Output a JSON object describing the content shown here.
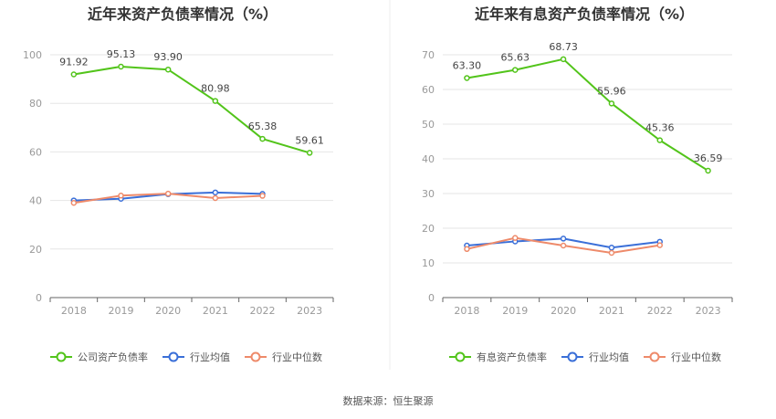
{
  "source": "数据来源：恒生聚源",
  "chart_data": [
    {
      "type": "line",
      "title": "近年来资产负债率情况（%）",
      "categories": [
        "2018",
        "2019",
        "2020",
        "2021",
        "2022",
        "2023"
      ],
      "ylim": [
        0,
        100
      ],
      "yticks": [
        0,
        20,
        40,
        60,
        80,
        100
      ],
      "grid": true,
      "legend_position": "bottom",
      "series": [
        {
          "name": "公司资产负债率",
          "color": "#52c41a",
          "values": [
            91.92,
            95.13,
            93.9,
            80.98,
            65.38,
            59.61
          ],
          "labels": [
            "91.92",
            "95.13",
            "93.90",
            "80.98",
            "65.38",
            "59.61"
          ]
        },
        {
          "name": "行业均值",
          "color": "#3a6fd8",
          "values": [
            40.0,
            40.7,
            42.6,
            43.3,
            42.7,
            null
          ]
        },
        {
          "name": "行业中位数",
          "color": "#ee8a6a",
          "values": [
            39.0,
            42.0,
            42.8,
            41.0,
            41.9,
            null
          ]
        }
      ]
    },
    {
      "type": "line",
      "title": "近年来有息资产负债率情况（%）",
      "categories": [
        "2018",
        "2019",
        "2020",
        "2021",
        "2022",
        "2023"
      ],
      "ylim": [
        0,
        70
      ],
      "yticks": [
        0,
        10,
        20,
        30,
        40,
        50,
        60,
        70
      ],
      "grid": true,
      "legend_position": "bottom",
      "series": [
        {
          "name": "有息资产负债率",
          "color": "#52c41a",
          "values": [
            63.3,
            65.63,
            68.73,
            55.96,
            45.36,
            36.59
          ],
          "labels": [
            "63.30",
            "65.63",
            "68.73",
            "55.96",
            "45.36",
            "36.59"
          ]
        },
        {
          "name": "行业均值",
          "color": "#3a6fd8",
          "values": [
            15.0,
            16.2,
            17.0,
            14.4,
            16.1,
            null
          ]
        },
        {
          "name": "行业中位数",
          "color": "#ee8a6a",
          "values": [
            14.0,
            17.2,
            15.0,
            12.9,
            15.1,
            null
          ]
        }
      ]
    }
  ]
}
